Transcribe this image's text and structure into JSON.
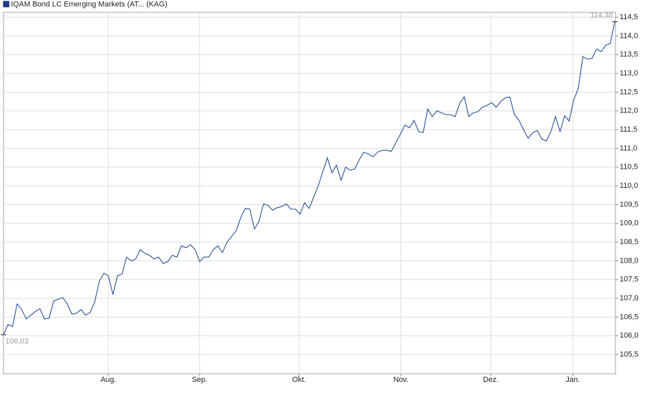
{
  "chart_data": {
    "type": "line",
    "series": [
      {
        "name": "IQAM Bond LC Emerging Markets (AT... (KAG)",
        "color": "#1f4e96",
        "values": [
          106.03,
          106.3,
          106.25,
          106.85,
          106.7,
          106.45,
          106.55,
          106.65,
          106.72,
          106.45,
          106.47,
          106.93,
          106.98,
          107.02,
          106.85,
          106.58,
          106.6,
          106.7,
          106.55,
          106.62,
          106.9,
          107.45,
          107.67,
          107.6,
          107.1,
          107.6,
          107.65,
          108.1,
          108.0,
          108.05,
          108.3,
          108.2,
          108.15,
          108.05,
          108.1,
          107.93,
          107.98,
          108.15,
          108.1,
          108.4,
          108.35,
          108.43,
          108.3,
          107.98,
          108.1,
          108.1,
          108.3,
          108.4,
          108.22,
          108.5,
          108.65,
          108.8,
          109.15,
          109.4,
          109.38,
          108.85,
          109.05,
          109.52,
          109.48,
          109.35,
          109.42,
          109.45,
          109.52,
          109.38,
          109.38,
          109.25,
          109.55,
          109.4,
          109.7,
          110.0,
          110.38,
          110.75,
          110.35,
          110.55,
          110.15,
          110.5,
          110.42,
          110.45,
          110.7,
          110.9,
          110.85,
          110.78,
          110.9,
          110.95,
          110.95,
          110.92,
          111.15,
          111.38,
          111.62,
          111.55,
          111.75,
          111.45,
          111.42,
          112.05,
          111.85,
          112.0,
          111.95,
          111.9,
          111.9,
          111.85,
          112.2,
          112.38,
          111.85,
          111.95,
          111.98,
          112.1,
          112.15,
          112.22,
          112.1,
          112.25,
          112.35,
          112.37,
          111.9,
          111.75,
          111.5,
          111.27,
          111.42,
          111.48,
          111.25,
          111.2,
          111.45,
          111.85,
          111.45,
          111.87,
          111.73,
          112.3,
          112.6,
          113.45,
          113.38,
          113.4,
          113.65,
          113.58,
          113.75,
          113.8,
          114.38
        ]
      }
    ],
    "x": [
      0,
      1,
      2,
      3,
      4,
      5,
      6,
      7,
      8,
      9,
      10,
      11,
      12,
      13,
      14,
      15,
      16,
      17,
      18,
      19,
      20,
      21,
      22,
      23,
      24,
      25,
      26,
      27,
      28,
      29,
      30,
      31,
      32,
      33,
      34,
      35,
      36,
      37,
      38,
      39,
      40,
      41,
      42,
      43,
      44,
      45,
      46,
      47,
      48,
      49,
      50,
      51,
      52,
      53,
      54,
      55,
      56,
      57,
      58,
      59,
      60,
      61,
      62,
      63,
      64,
      65,
      66,
      67,
      68,
      69,
      70,
      71,
      72,
      73,
      74,
      75,
      76,
      77,
      78,
      79,
      80,
      81,
      82,
      83,
      84,
      85,
      86,
      87,
      88,
      89,
      90,
      91,
      92,
      93,
      94,
      95,
      96,
      97,
      98,
      99,
      100,
      101,
      102,
      103,
      104,
      105,
      106,
      107,
      108,
      109,
      110,
      111,
      112,
      113,
      114,
      115,
      116,
      117,
      118,
      119,
      120,
      121,
      122,
      123,
      124,
      125,
      126,
      127,
      128,
      129,
      130,
      131,
      132,
      133,
      134
    ],
    "xlim": [
      0,
      134.15
    ],
    "xticks": [
      {
        "value": 23.0,
        "label": "Aug."
      },
      {
        "value": 43.0,
        "label": "Sep."
      },
      {
        "value": 64.8,
        "label": "Okt."
      },
      {
        "value": 87.1,
        "label": "Nov."
      },
      {
        "value": 106.8,
        "label": "Dez."
      },
      {
        "value": 124.8,
        "label": "Jan."
      }
    ],
    "ylim": [
      104.99,
      114.63
    ],
    "yticks": [
      {
        "value": 105.5,
        "label": "105,5"
      },
      {
        "value": 106.0,
        "label": "106,0"
      },
      {
        "value": 106.5,
        "label": "106,5"
      },
      {
        "value": 107.0,
        "label": "107,0"
      },
      {
        "value": 107.5,
        "label": "107,5"
      },
      {
        "value": 108.0,
        "label": "108,0"
      },
      {
        "value": 108.5,
        "label": "108,5"
      },
      {
        "value": 109.0,
        "label": "109,0"
      },
      {
        "value": 109.5,
        "label": "109,5"
      },
      {
        "value": 110.0,
        "label": "110,0"
      },
      {
        "value": 110.5,
        "label": "110,5"
      },
      {
        "value": 111.0,
        "label": "111,0"
      },
      {
        "value": 111.5,
        "label": "111,5"
      },
      {
        "value": 112.0,
        "label": "112,0"
      },
      {
        "value": 112.5,
        "label": "112,5"
      },
      {
        "value": 113.0,
        "label": "113,0"
      },
      {
        "value": 113.5,
        "label": "113,5"
      },
      {
        "value": 114.0,
        "label": "114,0"
      },
      {
        "value": 114.5,
        "label": "114,5"
      }
    ],
    "grid": true,
    "annotations": [
      {
        "x": 0,
        "value": 106.03,
        "label": "106,03"
      },
      {
        "x": 134,
        "value": 114.38,
        "label": "114,38"
      }
    ]
  }
}
